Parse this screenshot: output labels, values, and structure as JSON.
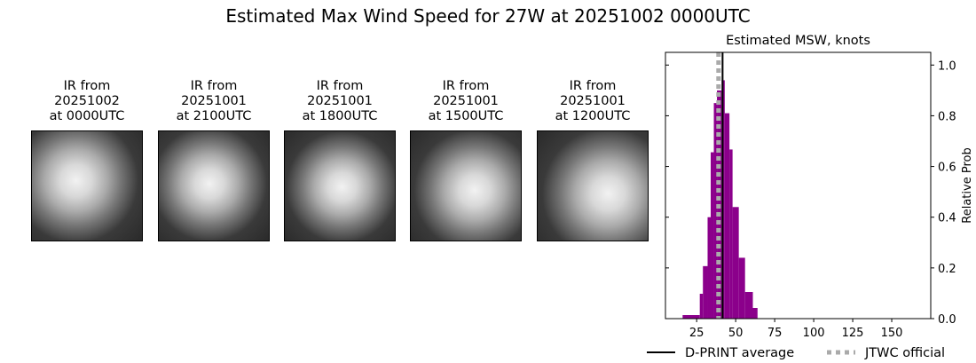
{
  "title": "Estimated Max Wind Speed for 27W at 20251002 0000UTC",
  "panels": [
    {
      "label": "IR from\n20251002\nat 0000UTC"
    },
    {
      "label": "IR from\n20251001\nat 2100UTC"
    },
    {
      "label": "IR from\n20251001\nat 1800UTC"
    },
    {
      "label": "IR from\n20251001\nat 1500UTC"
    },
    {
      "label": "IR from\n20251001\nat 1200UTC"
    }
  ],
  "chart_data": {
    "type": "bar",
    "title": "Estimated MSW, knots",
    "ylabel": "Relative Prob",
    "xlim": [
      5,
      175
    ],
    "ylim": [
      0,
      1.05
    ],
    "xticks": [
      25,
      50,
      75,
      100,
      125,
      150
    ],
    "yticks": [
      0.0,
      0.2,
      0.4,
      0.6,
      0.8,
      1.0
    ],
    "bin_edges": [
      16,
      27,
      29,
      32,
      34,
      36,
      38,
      41,
      43,
      46,
      48,
      52,
      56,
      61,
      64
    ],
    "values": [
      0.014,
      0.098,
      0.207,
      0.4,
      0.656,
      0.85,
      0.9,
      0.94,
      0.81,
      0.667,
      0.44,
      0.24,
      0.105,
      0.042
    ],
    "bar_color": "#8b008b",
    "dprint_average": 41.6,
    "jtwc_official": 39,
    "legend": [
      {
        "label": "D-PRINT average",
        "color": "#000000",
        "style": "solid"
      },
      {
        "label": "JTWC official",
        "color": "#aaaaaa",
        "style": "dotted"
      }
    ],
    "legend_placement": "bottom"
  }
}
